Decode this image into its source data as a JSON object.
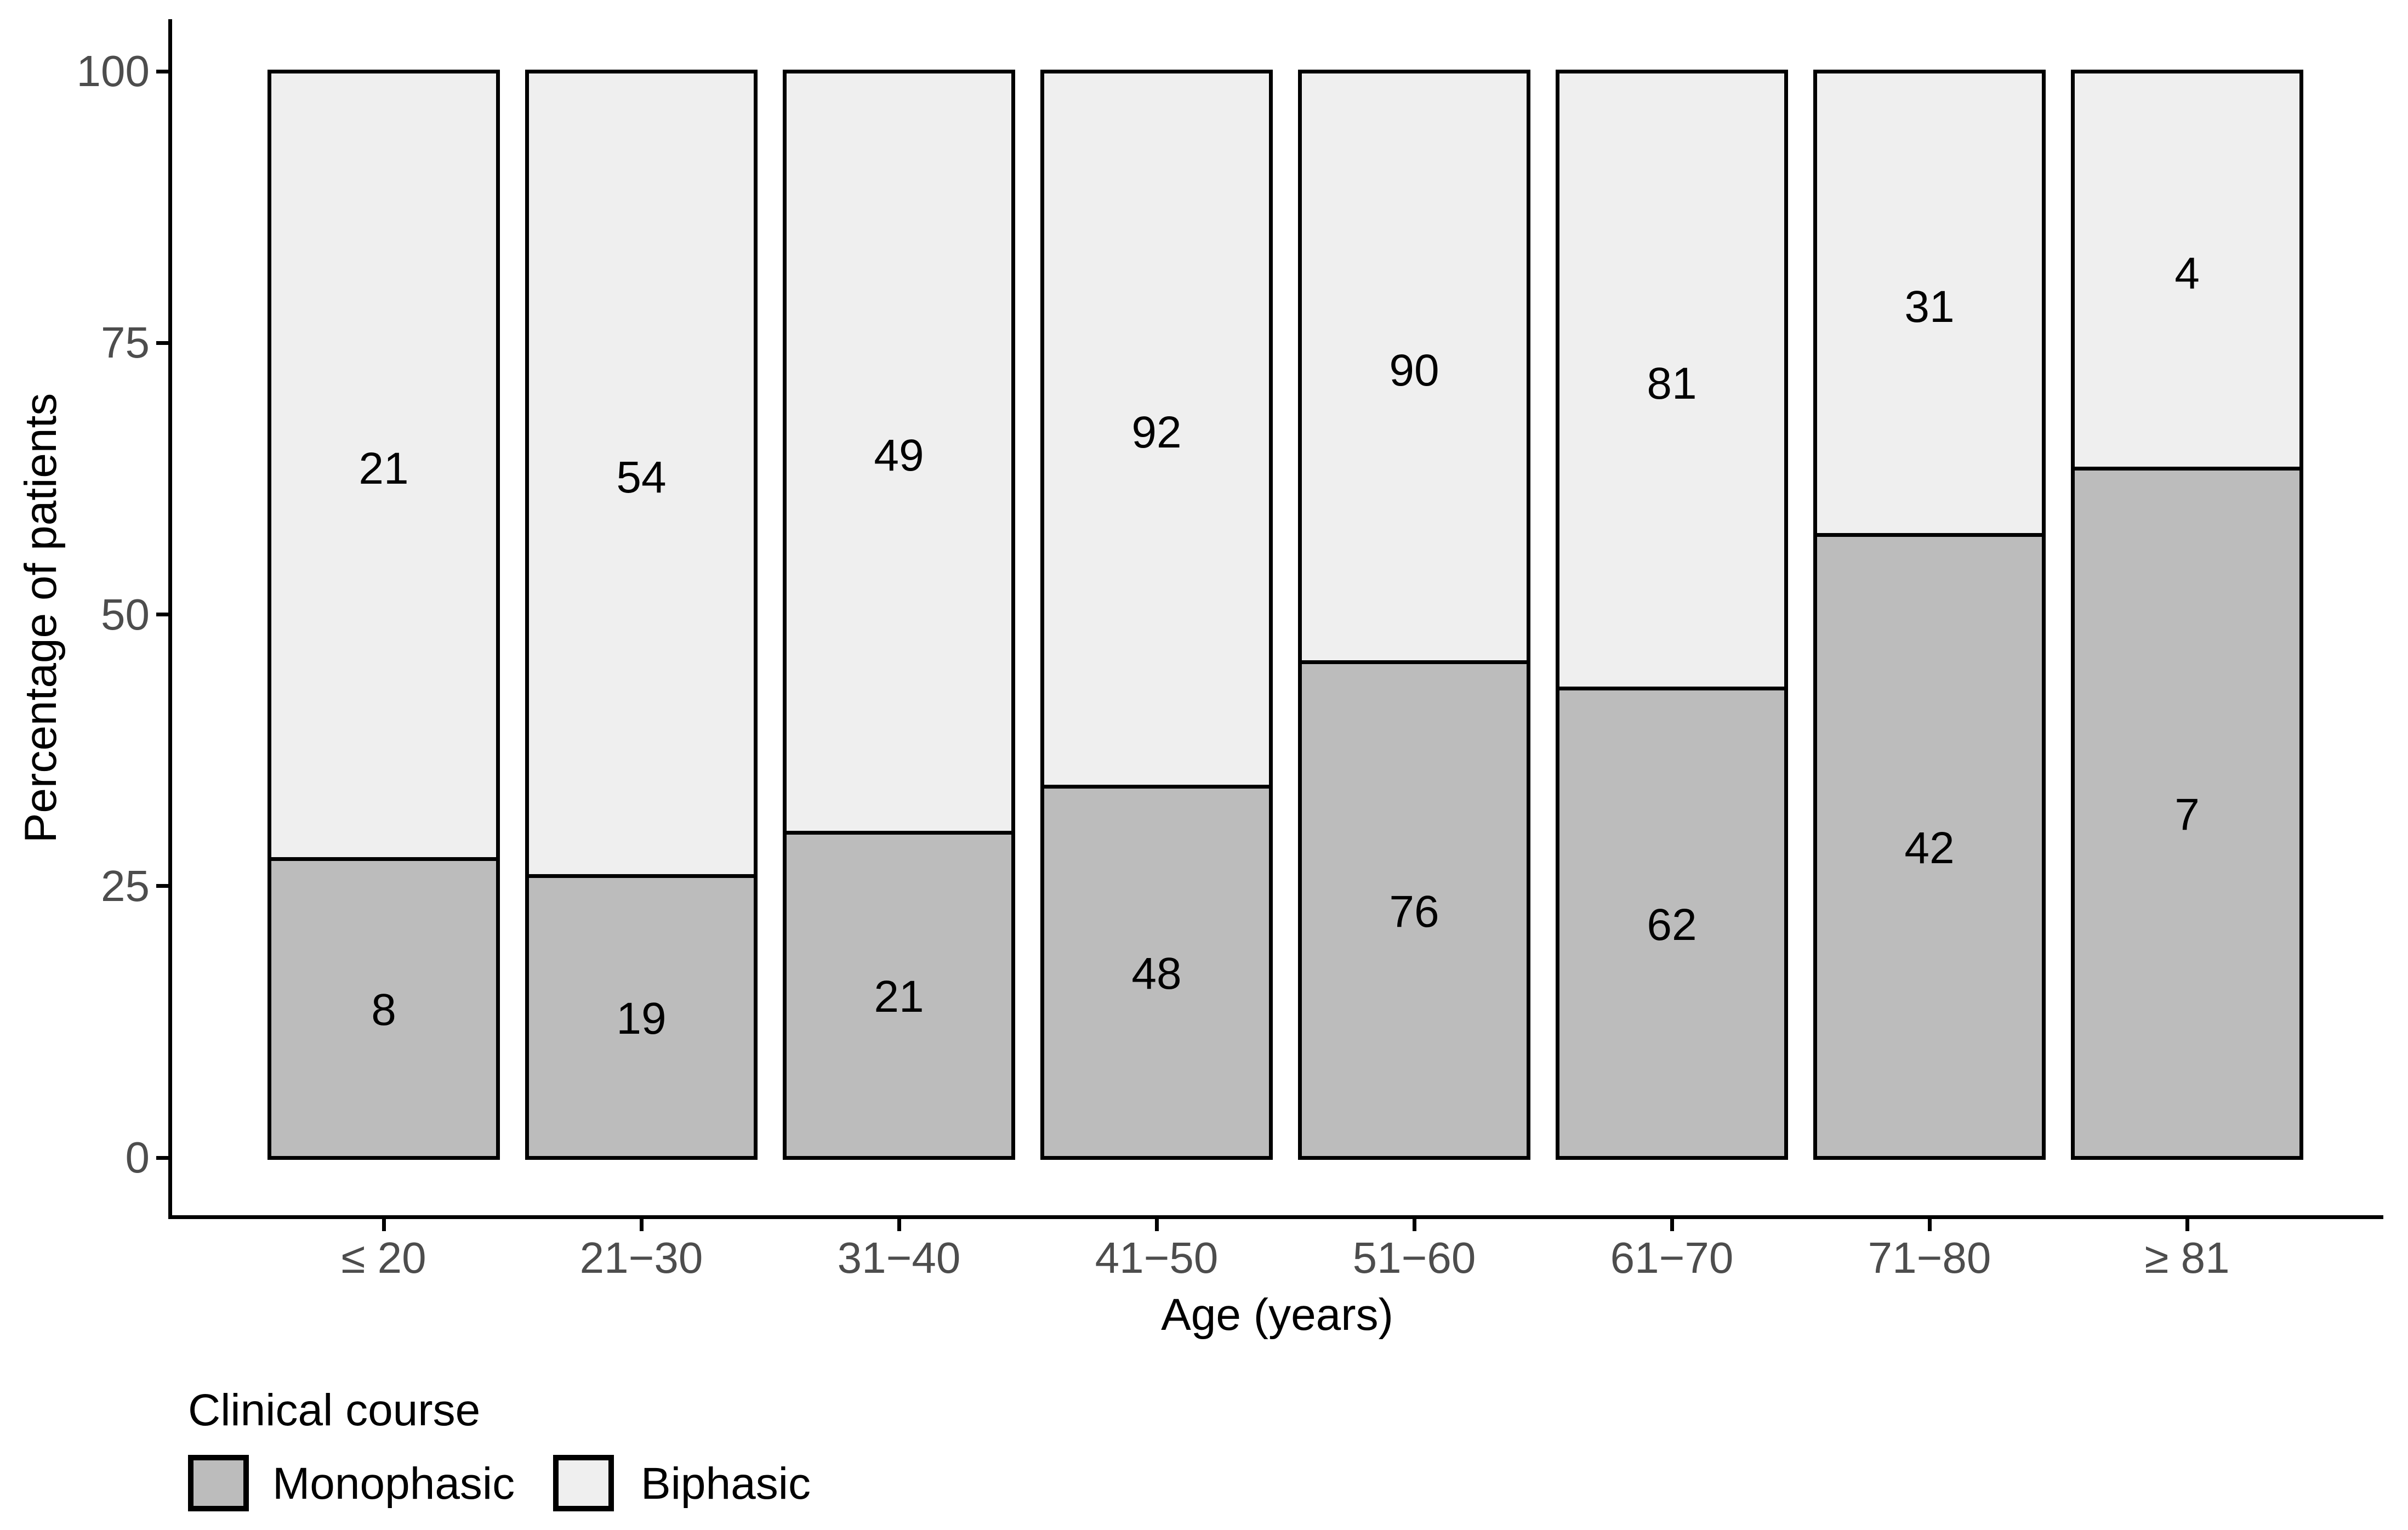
{
  "chart_data": {
    "type": "bar",
    "variant": "stacked-percent",
    "title": "",
    "xlabel": "Age (years)",
    "ylabel": "Percentage of patients",
    "categories": [
      "≤ 20",
      "21−30",
      "31−40",
      "41−50",
      "51−60",
      "61−70",
      "71−80",
      "≥ 81"
    ],
    "series": [
      {
        "name": "Monophasic",
        "color": "#bcbcbc",
        "values": [
          8,
          19,
          21,
          48,
          76,
          62,
          42,
          7
        ]
      },
      {
        "name": "Biphasic",
        "color": "#efefef",
        "values": [
          21,
          54,
          49,
          92,
          90,
          81,
          31,
          4
        ]
      }
    ],
    "stack_order_bottom_to_top": [
      "Monophasic",
      "Biphasic"
    ],
    "bar_value_labels_shown": true,
    "yticks": [
      "0",
      "25",
      "50",
      "75",
      "100"
    ],
    "ylim": [
      0,
      100
    ],
    "grid": "off",
    "legend_title": "Clinical course",
    "legend_position": "bottom-left",
    "bar_border_color": "#000000",
    "axis_line_color": "#000000",
    "axis_text_color": "#4d4d4d",
    "axis_title_color": "#000000",
    "label_text_color": "#000000",
    "background_color": "#ffffff"
  }
}
